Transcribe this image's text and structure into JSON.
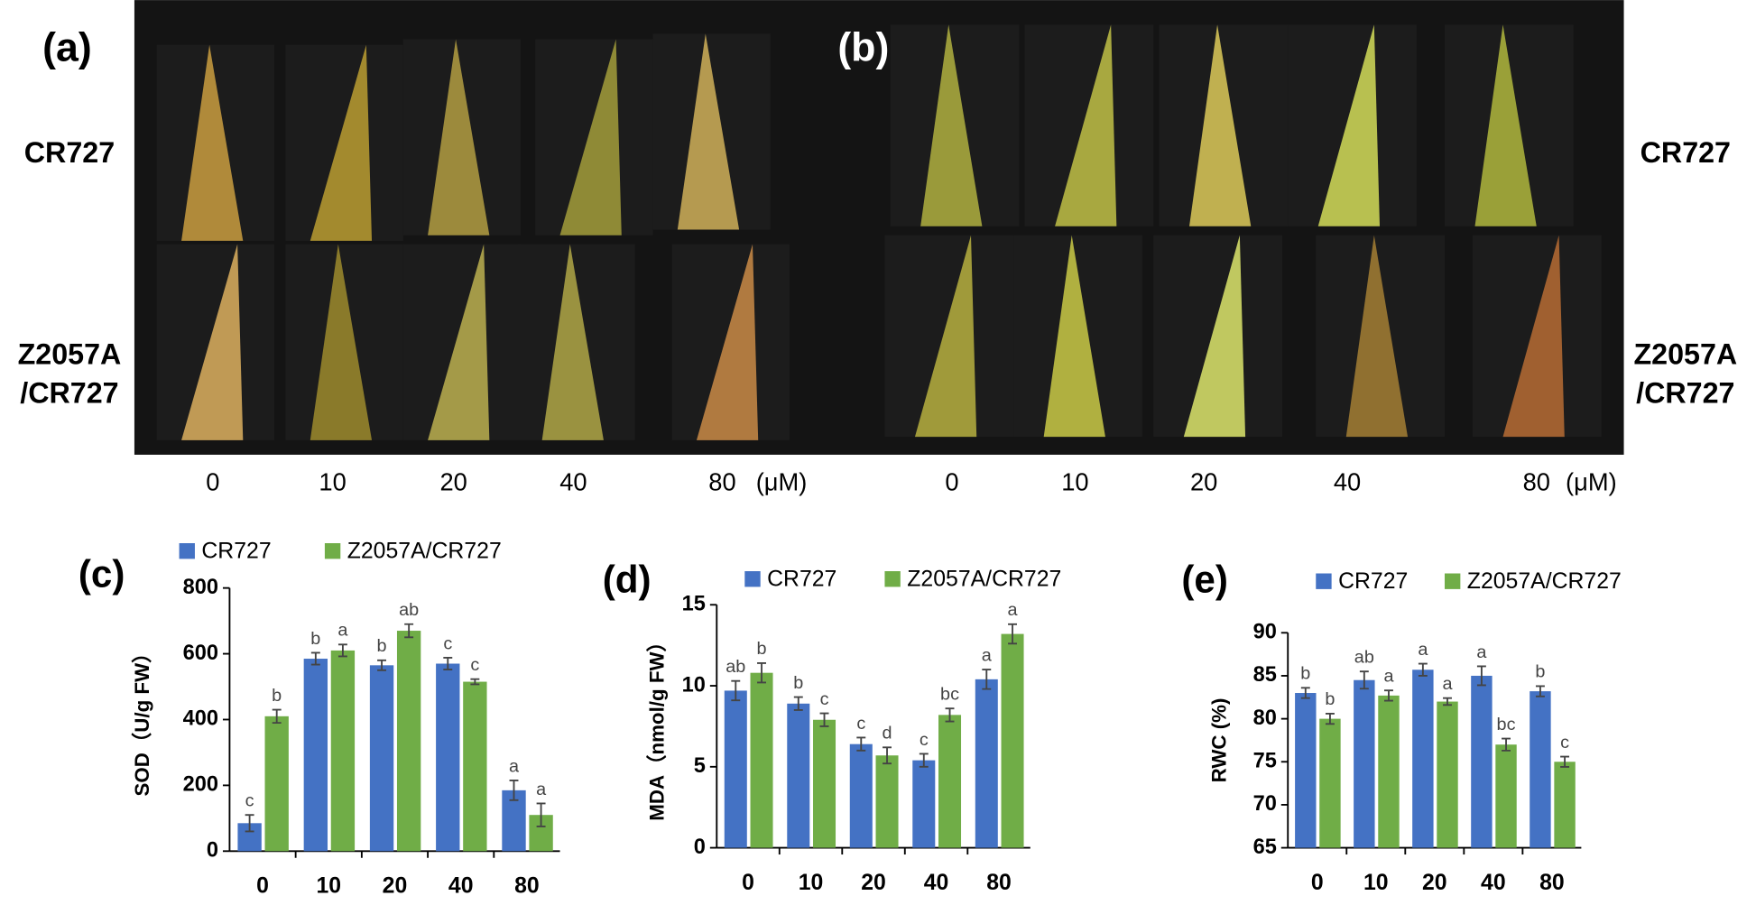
{
  "photos": {
    "a": {
      "label": "(a)",
      "rows": [
        "CR727",
        [
          "Z2057A",
          "/CR727"
        ]
      ],
      "concentrations": [
        "0",
        "10",
        "20",
        "40",
        "80"
      ],
      "unit": "(μM)"
    },
    "b": {
      "label": "(b)",
      "rows": [
        "CR727",
        [
          "Z2057A",
          "/CR727"
        ]
      ],
      "concentrations": [
        "0",
        "10",
        "20",
        "40",
        "80"
      ],
      "unit": "(μM)"
    }
  },
  "chart_data": [
    {
      "type": "bar",
      "panel": "(c)",
      "y_label": "SOD（U/g FW）",
      "categories": [
        "0",
        "10",
        "20",
        "40",
        "80"
      ],
      "ylim": [
        0,
        800
      ],
      "yticks": [
        0,
        200,
        400,
        600,
        800
      ],
      "series": [
        {
          "name": "CR727",
          "color": "#4472c4",
          "values": [
            85,
            585,
            565,
            570,
            185
          ],
          "errors": [
            25,
            18,
            15,
            18,
            30
          ],
          "labels": [
            "c",
            "b",
            "b",
            "c",
            "a"
          ]
        },
        {
          "name": "Z2057A/CR727",
          "color": "#70ad47",
          "values": [
            410,
            610,
            670,
            515,
            110
          ],
          "errors": [
            20,
            18,
            20,
            8,
            35
          ],
          "labels": [
            "b",
            "a",
            "ab",
            "c",
            "a"
          ]
        }
      ]
    },
    {
      "type": "bar",
      "panel": "(d)",
      "y_label": "MDA（nmol/g FW）",
      "categories": [
        "0",
        "10",
        "20",
        "40",
        "80"
      ],
      "ylim": [
        0,
        15
      ],
      "yticks": [
        0,
        5,
        10,
        15
      ],
      "series": [
        {
          "name": "CR727",
          "color": "#4472c4",
          "values": [
            9.7,
            8.9,
            6.4,
            5.4,
            10.4
          ],
          "errors": [
            0.6,
            0.4,
            0.4,
            0.4,
            0.6
          ],
          "labels": [
            "ab",
            "b",
            "c",
            "c",
            "a"
          ]
        },
        {
          "name": "Z2057A/CR727",
          "color": "#70ad47",
          "values": [
            10.8,
            7.9,
            5.7,
            8.2,
            13.2
          ],
          "errors": [
            0.6,
            0.4,
            0.5,
            0.4,
            0.6
          ],
          "labels": [
            "b",
            "c",
            "d",
            "bc",
            "a"
          ]
        }
      ]
    },
    {
      "type": "bar",
      "panel": "(e)",
      "y_label": "RWC (%)",
      "categories": [
        "0",
        "10",
        "20",
        "40",
        "80"
      ],
      "ylim": [
        65,
        90
      ],
      "yticks": [
        65,
        70,
        75,
        80,
        85,
        90
      ],
      "series": [
        {
          "name": "CR727",
          "color": "#4472c4",
          "values": [
            83,
            84.5,
            85.7,
            85,
            83.2
          ],
          "errors": [
            0.6,
            1,
            0.7,
            1.1,
            0.6
          ],
          "labels": [
            "b",
            "ab",
            "a",
            "a",
            "b"
          ]
        },
        {
          "name": "Z2057A/CR727",
          "color": "#70ad47",
          "values": [
            80,
            82.7,
            82,
            77,
            75
          ],
          "errors": [
            0.6,
            0.6,
            0.4,
            0.7,
            0.6
          ],
          "labels": [
            "b",
            "a",
            "a",
            "bc",
            "c"
          ]
        }
      ]
    }
  ]
}
